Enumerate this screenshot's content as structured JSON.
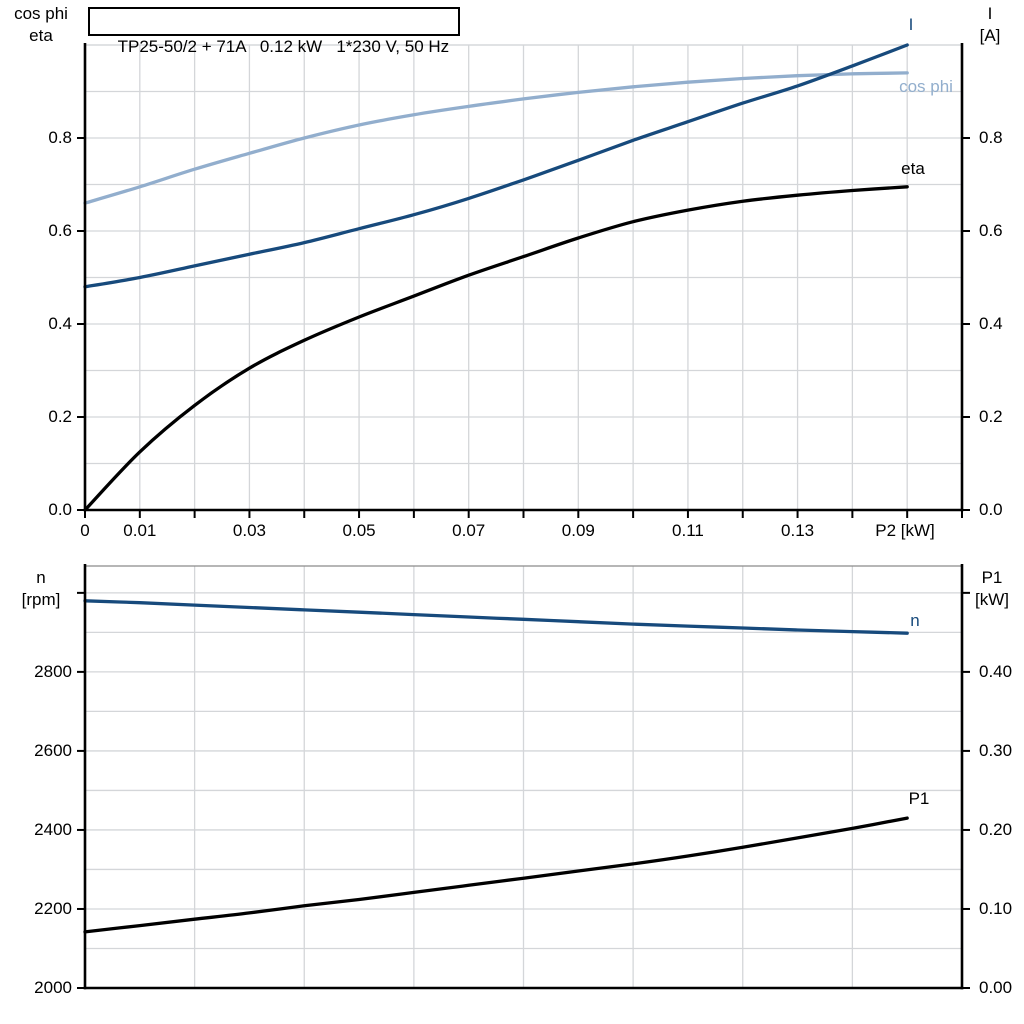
{
  "title": "TP25-50/2 + 71A   0.12 kW   1*230 V, 50 Hz",
  "colors": {
    "dark_blue": "#174a7c",
    "light_blue": "#92aecd",
    "black": "#000000",
    "grid": "#d4d6d9",
    "axis": "#000000",
    "panel_top_border": "#8a8a8a"
  },
  "chart_data": [
    {
      "type": "line",
      "panel": "top",
      "title": "TP25-50/2 + 71A   0.12 kW   1*230 V, 50 Hz",
      "x_axis": {
        "label": "P2 [kW]",
        "range": [
          0,
          0.16
        ],
        "grid_step": 0.01,
        "tick_step": 0.01,
        "labeled_ticks": [
          {
            "v": 0,
            "t": "0"
          },
          {
            "v": 0.01,
            "t": "0.01"
          },
          {
            "v": 0.03,
            "t": "0.03"
          },
          {
            "v": 0.05,
            "t": "0.05"
          },
          {
            "v": 0.07,
            "t": "0.07"
          },
          {
            "v": 0.09,
            "t": "0.09"
          },
          {
            "v": 0.11,
            "t": "0.11"
          },
          {
            "v": 0.13,
            "t": "0.13"
          }
        ]
      },
      "y_left": {
        "label_lines": [
          "cos phi",
          "eta"
        ],
        "range": [
          0,
          1.0
        ],
        "grid_step": 0.1,
        "ticks": [
          {
            "v": 0.0,
            "t": "0.0"
          },
          {
            "v": 0.2,
            "t": "0.2"
          },
          {
            "v": 0.4,
            "t": "0.4"
          },
          {
            "v": 0.6,
            "t": "0.6"
          },
          {
            "v": 0.8,
            "t": "0.8"
          }
        ]
      },
      "y_right": {
        "label_lines": [
          "I",
          "[A]"
        ],
        "range": [
          0,
          1.0
        ],
        "ticks": [
          {
            "v": 0.0,
            "t": "0.0"
          },
          {
            "v": 0.2,
            "t": "0.2"
          },
          {
            "v": 0.4,
            "t": "0.4"
          },
          {
            "v": 0.6,
            "t": "0.6"
          },
          {
            "v": 0.8,
            "t": "0.8"
          }
        ]
      },
      "x": [
        0,
        0.01,
        0.02,
        0.03,
        0.04,
        0.05,
        0.06,
        0.07,
        0.08,
        0.09,
        0.1,
        0.11,
        0.12,
        0.13,
        0.14,
        0.15
      ],
      "series": [
        {
          "name": "cos phi",
          "axis": "left",
          "color_key": "light_blue",
          "values": [
            0.66,
            0.695,
            0.733,
            0.767,
            0.8,
            0.828,
            0.85,
            0.868,
            0.884,
            0.898,
            0.91,
            0.92,
            0.928,
            0.934,
            0.938,
            0.94
          ]
        },
        {
          "name": "I",
          "axis": "right",
          "color_key": "dark_blue",
          "values": [
            0.48,
            0.5,
            0.525,
            0.55,
            0.575,
            0.605,
            0.635,
            0.67,
            0.71,
            0.752,
            0.795,
            0.835,
            0.875,
            0.912,
            0.955,
            1.0
          ]
        },
        {
          "name": "eta",
          "axis": "left",
          "color_key": "black",
          "values": [
            0.0,
            0.125,
            0.225,
            0.305,
            0.365,
            0.415,
            0.46,
            0.505,
            0.545,
            0.585,
            0.62,
            0.645,
            0.664,
            0.677,
            0.687,
            0.695
          ]
        }
      ]
    },
    {
      "type": "line",
      "panel": "bottom",
      "x_axis": {
        "label": "",
        "range": [
          0,
          0.16
        ],
        "grid_step": 0.02
      },
      "y_left": {
        "label_lines": [
          "n",
          "[rpm]"
        ],
        "range": [
          2000,
          3068
        ],
        "grid_step": 100,
        "ticks": [
          {
            "v": 2000,
            "t": "2000"
          },
          {
            "v": 2200,
            "t": "2200"
          },
          {
            "v": 2400,
            "t": "2400"
          },
          {
            "v": 2600,
            "t": "2600"
          },
          {
            "v": 2800,
            "t": "2800"
          },
          {
            "v": 3000,
            "t": ""
          }
        ]
      },
      "y_right": {
        "label_lines": [
          "P1",
          "[kW]"
        ],
        "range": [
          0,
          0.534
        ],
        "ticks": [
          {
            "v": 0.0,
            "t": "0.00"
          },
          {
            "v": 0.1,
            "t": "0.10"
          },
          {
            "v": 0.2,
            "t": "0.20"
          },
          {
            "v": 0.3,
            "t": "0.30"
          },
          {
            "v": 0.4,
            "t": "0.40"
          },
          {
            "v": 0.5,
            "t": ""
          }
        ]
      },
      "x": [
        0,
        0.01,
        0.02,
        0.03,
        0.04,
        0.05,
        0.06,
        0.07,
        0.08,
        0.09,
        0.1,
        0.11,
        0.12,
        0.13,
        0.14,
        0.15
      ],
      "series": [
        {
          "name": "n",
          "axis": "left",
          "color_key": "dark_blue",
          "values": [
            2980,
            2975,
            2969,
            2963,
            2957,
            2951,
            2945,
            2939,
            2933,
            2927,
            2921,
            2916,
            2911,
            2906,
            2902,
            2898
          ]
        },
        {
          "name": "P1",
          "axis": "right",
          "color_key": "black",
          "values": [
            0.071,
            0.079,
            0.087,
            0.095,
            0.104,
            0.112,
            0.121,
            0.13,
            0.139,
            0.148,
            0.157,
            0.167,
            0.178,
            0.19,
            0.202,
            0.215
          ]
        }
      ]
    }
  ]
}
